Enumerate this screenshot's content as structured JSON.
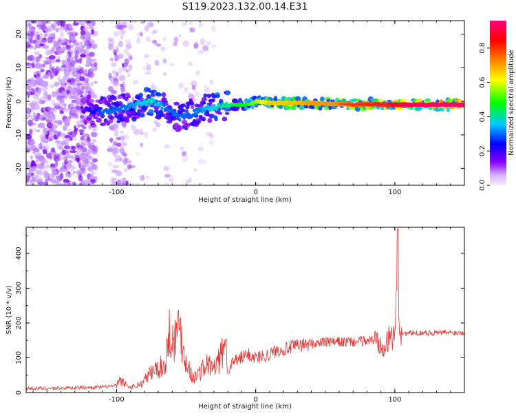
{
  "title": "S119.2023.132.00.14.E31",
  "chart_data": [
    {
      "type": "heatmap",
      "xlabel": "Height of straight line (km)",
      "ylabel": "Frequency (Hz)",
      "xlim": [
        -165,
        150
      ],
      "ylim": [
        -25,
        24
      ],
      "x_ticks": [
        -100,
        0,
        100
      ],
      "y_ticks": [
        -20,
        -10,
        0,
        10,
        20
      ],
      "colorbar": {
        "label": "Normalized spectral amplitude",
        "range": [
          0.0,
          0.96
        ],
        "ticks": [
          0.0,
          0.2,
          0.4,
          0.6,
          0.8
        ],
        "colormap": [
          "#f4ecfb",
          "#8a00ff",
          "#0000ff",
          "#00c8ff",
          "#00ff00",
          "#ffff00",
          "#ff8000",
          "#ff0000",
          "#ff007f"
        ]
      },
      "ridge": {
        "x": [
          -125,
          -110,
          -95,
          -85,
          -75,
          -65,
          -55,
          -45,
          -35,
          -25,
          -15,
          -5,
          0,
          10,
          25,
          40,
          55,
          70,
          85,
          95,
          100,
          110,
          125,
          150
        ],
        "freq": [
          -2.5,
          -3,
          -2,
          -1,
          0,
          -2,
          -5,
          -3.5,
          -2,
          -1.5,
          -1,
          -1,
          0,
          -0.5,
          -0.5,
          -0.5,
          -0.8,
          -1.0,
          -0.8,
          -1.0,
          -1.0,
          -1.0,
          -1.0,
          -1.0
        ],
        "amplitude": [
          0.15,
          0.3,
          0.3,
          0.35,
          0.4,
          0.3,
          0.3,
          0.3,
          0.35,
          0.4,
          0.45,
          0.5,
          0.55,
          0.65,
          0.65,
          0.7,
          0.7,
          0.75,
          0.8,
          0.8,
          0.85,
          0.9,
          0.92,
          0.95
        ]
      }
    },
    {
      "type": "line",
      "xlabel": "Height of straight line (km)",
      "ylabel": "SNR (10 * v/v)",
      "xlim": [
        -165,
        150
      ],
      "ylim": [
        0,
        475
      ],
      "x_ticks": [
        -100,
        0,
        100
      ],
      "y_ticks": [
        0,
        100,
        200,
        300,
        400
      ],
      "color": "#e8302c",
      "series": [
        {
          "x": [
            -165,
            -150,
            -130,
            -110,
            -100,
            -98,
            -90,
            -82,
            -75,
            -70,
            -65,
            -62,
            -60,
            -57,
            -55,
            -52,
            -50,
            -45,
            -40,
            -35,
            -30,
            -25,
            -22,
            -20,
            -15,
            -10,
            -5,
            0,
            5,
            10,
            15,
            20,
            30,
            40,
            50,
            60,
            70,
            80,
            85,
            90,
            95,
            98,
            100,
            101,
            102,
            103,
            105,
            110,
            120,
            130,
            140,
            150
          ],
          "y": [
            12,
            12,
            14,
            16,
            20,
            35,
            15,
            25,
            60,
            70,
            80,
            180,
            150,
            160,
            205,
            120,
            90,
            40,
            60,
            80,
            70,
            100,
            155,
            70,
            90,
            100,
            110,
            100,
            105,
            110,
            120,
            125,
            135,
            140,
            145,
            145,
            145,
            150,
            150,
            150,
            145,
            160,
            180,
            250,
            470,
            190,
            170,
            170,
            172,
            172,
            172,
            172
          ]
        }
      ]
    }
  ]
}
